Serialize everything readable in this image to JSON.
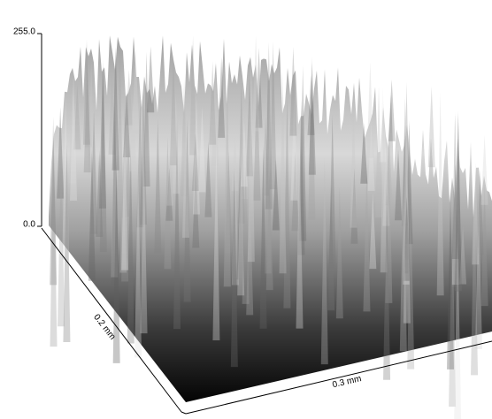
{
  "chart_data": {
    "type": "surface",
    "zlim": [
      0,
      255
    ],
    "zticks": [
      {
        "value": 0,
        "label": "0.0"
      },
      {
        "value": 255,
        "label": "255.0"
      }
    ],
    "x_label": "0.3 mm",
    "y_label": "0.2 mm"
  }
}
